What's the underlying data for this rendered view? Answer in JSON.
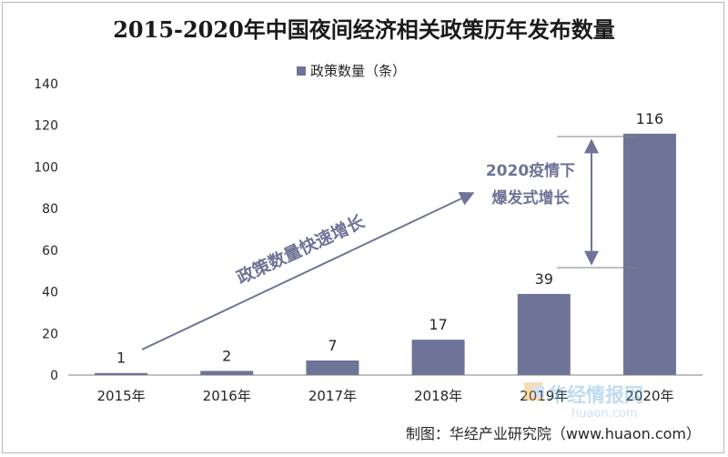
{
  "chart_data": {
    "type": "bar",
    "title": "2015-2020年中国夜间经济相关政策历年发布数量",
    "categories": [
      "2015年",
      "2016年",
      "2017年",
      "2018年",
      "2019年",
      "2020年"
    ],
    "series": [
      {
        "name": "政策数量（条）",
        "values": [
          1,
          2,
          7,
          17,
          39,
          116
        ]
      }
    ],
    "ylim": [
      0,
      140
    ],
    "yticks": [
      0,
      20,
      40,
      60,
      80,
      100,
      120,
      140
    ],
    "xlabel": "",
    "ylabel": "",
    "grid": false,
    "legend_position": "top-center",
    "bar_color": "#6e7497",
    "annotations": {
      "trend_label": "政策数量快速增长",
      "surge_label_line1": "2020疫情下",
      "surge_label_line2": "爆发式增长"
    }
  },
  "footer": {
    "source": "制图：华经产业研究院（www.huaon.com）"
  },
  "watermark": {
    "brand": "华经情报网",
    "domain": "huaon.com"
  },
  "colors": {
    "bar": "#6e7497",
    "annotation": "#6e7497",
    "axis": "#7f7f7f",
    "text": "#262626"
  }
}
